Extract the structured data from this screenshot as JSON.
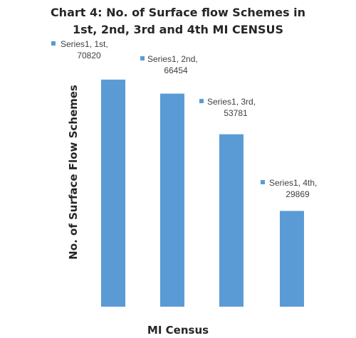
{
  "chart_data": {
    "type": "bar",
    "title": "Chart 4: No. of Surface flow Schemes in 1st, 2nd, 3rd and 4th MI CENSUS",
    "title_lines": [
      "Chart 4: No. of Surface flow Schemes in",
      "1st, 2nd, 3rd and 4th MI CENSUS"
    ],
    "xlabel": "MI Census",
    "ylabel": "No. of Surface Flow Schemes",
    "categories": [
      "1st",
      "2nd",
      "3rd",
      "4th"
    ],
    "series": [
      {
        "name": "Series1",
        "values": [
          70820,
          66454,
          53781,
          29869
        ]
      }
    ],
    "data_labels": [
      [
        "Series1, 1st,",
        "70820"
      ],
      [
        "Series1, 2nd,",
        "66454"
      ],
      [
        "Series1, 3rd,",
        "53781"
      ],
      [
        "Series1, 4th,",
        "29869"
      ]
    ],
    "ylim": [
      0,
      85000
    ],
    "grid": false,
    "legend": "none",
    "bar_color": "#5B9BD5",
    "label_color": "#404040"
  }
}
